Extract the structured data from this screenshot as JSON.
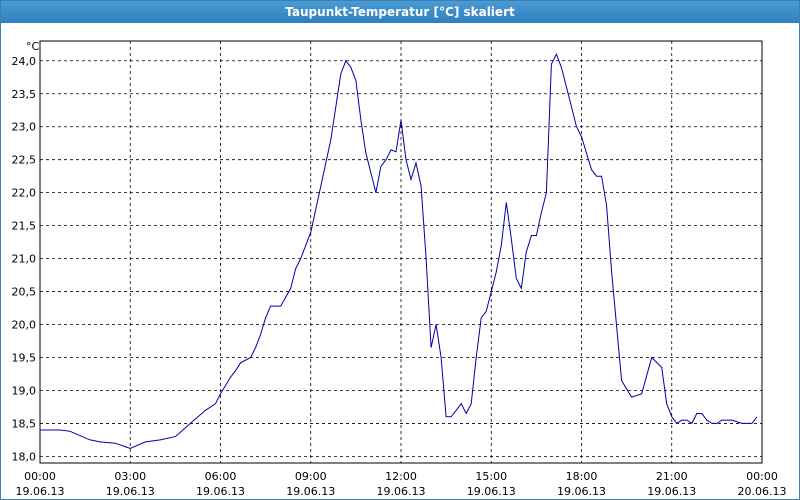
{
  "window": {
    "title": "Taupunkt-Temperatur [°C] skaliert"
  },
  "chart_data": {
    "type": "line",
    "title": "Taupunkt-Temperatur [°C] skaliert",
    "ylabel": "°C",
    "xlabel": "",
    "ylim": [
      17.9,
      24.3
    ],
    "xlim": [
      0,
      24
    ],
    "grid": true,
    "grid_style": "dashed",
    "line_color": "#0000aa",
    "y_ticks": [
      "18,0",
      "18,5",
      "19,0",
      "19,5",
      "20,0",
      "20,5",
      "21,0",
      "21,5",
      "22,0",
      "22,5",
      "23,0",
      "23,5",
      "24,0"
    ],
    "x_ticks": [
      {
        "time": "00:00",
        "date": "19.06.13"
      },
      {
        "time": "03:00",
        "date": "19.06.13"
      },
      {
        "time": "06:00",
        "date": "19.06.13"
      },
      {
        "time": "09:00",
        "date": "19.06.13"
      },
      {
        "time": "12:00",
        "date": "19.06.13"
      },
      {
        "time": "15:00",
        "date": "19.06.13"
      },
      {
        "time": "18:00",
        "date": "19.06.13"
      },
      {
        "time": "21:00",
        "date": "19.06.13"
      },
      {
        "time": "00:00",
        "date": "20.06.13"
      }
    ],
    "series": [
      {
        "x": [
          "19.06.13 00:00",
          "19.06.13 00:40",
          "19.06.13 01:00",
          "19.06.13 01:40",
          "19.06.13 02:00",
          "19.06.13 02:30",
          "19.06.13 03:00",
          "19.06.13 03:30",
          "19.06.13 04:00",
          "19.06.13 04:30",
          "19.06.13 05:00",
          "19.06.13 05:30",
          "19.06.13 05:50",
          "19.06.13 06:00",
          "19.06.13 06:20",
          "19.06.13 06:30",
          "19.06.13 06:40",
          "19.06.13 07:00",
          "19.06.13 07:10",
          "19.06.13 07:20",
          "19.06.13 07:30",
          "19.06.13 07:40",
          "19.06.13 08:00",
          "19.06.13 08:20",
          "19.06.13 08:30",
          "19.06.13 08:40",
          "19.06.13 09:00",
          "19.06.13 09:20",
          "19.06.13 09:40",
          "19.06.13 10:00",
          "19.06.13 10:10",
          "19.06.13 10:20",
          "19.06.13 10:30",
          "19.06.13 10:40",
          "19.06.13 10:50",
          "19.06.13 11:00",
          "19.06.13 11:10",
          "19.06.13 11:20",
          "19.06.13 11:30",
          "19.06.13 11:40",
          "19.06.13 11:50",
          "19.06.13 12:00",
          "19.06.13 12:10",
          "19.06.13 12:20",
          "19.06.13 12:30",
          "19.06.13 12:40",
          "19.06.13 12:50",
          "19.06.13 13:00",
          "19.06.13 13:10",
          "19.06.13 13:20",
          "19.06.13 13:30",
          "19.06.13 13:40",
          "19.06.13 13:50",
          "19.06.13 14:00",
          "19.06.13 14:10",
          "19.06.13 14:20",
          "19.06.13 14:30",
          "19.06.13 14:40",
          "19.06.13 14:50",
          "19.06.13 15:00",
          "19.06.13 15:10",
          "19.06.13 15:20",
          "19.06.13 15:30",
          "19.06.13 15:40",
          "19.06.13 15:50",
          "19.06.13 16:00",
          "19.06.13 16:10",
          "19.06.13 16:20",
          "19.06.13 16:30",
          "19.06.13 16:40",
          "19.06.13 16:50",
          "19.06.13 17:00",
          "19.06.13 17:10",
          "19.06.13 17:20",
          "19.06.13 17:30",
          "19.06.13 17:40",
          "19.06.13 17:50",
          "19.06.13 18:00",
          "19.06.13 18:10",
          "19.06.13 18:20",
          "19.06.13 18:30",
          "19.06.13 18:40",
          "19.06.13 18:50",
          "19.06.13 19:00",
          "19.06.13 19:20",
          "19.06.13 19:40",
          "19.06.13 20:00",
          "19.06.13 20:20",
          "19.06.13 20:40",
          "19.06.13 20:50",
          "19.06.13 21:00",
          "19.06.13 21:10",
          "19.06.13 21:20",
          "19.06.13 21:30",
          "19.06.13 21:40",
          "19.06.13 21:50",
          "19.06.13 22:00",
          "19.06.13 22:10",
          "19.06.13 22:20",
          "19.06.13 22:30",
          "19.06.13 22:40",
          "19.06.13 23:00",
          "19.06.13 23:20",
          "19.06.13 23:40",
          "19.06.13 23:50"
        ],
        "y": [
          18.4,
          18.4,
          18.38,
          18.25,
          18.22,
          18.2,
          18.12,
          18.22,
          18.25,
          18.3,
          18.5,
          18.7,
          18.8,
          18.95,
          19.2,
          19.3,
          19.42,
          19.5,
          19.65,
          19.85,
          20.1,
          20.28,
          20.28,
          20.55,
          20.85,
          21.0,
          21.4,
          22.1,
          22.8,
          23.8,
          24.0,
          23.9,
          23.7,
          23.1,
          22.6,
          22.3,
          22.0,
          22.4,
          22.5,
          22.65,
          22.62,
          23.1,
          22.5,
          22.2,
          22.45,
          22.1,
          21.0,
          19.65,
          20.0,
          19.5,
          18.6,
          18.6,
          18.7,
          18.8,
          18.65,
          18.8,
          19.5,
          20.1,
          20.2,
          20.5,
          20.8,
          21.2,
          21.85,
          21.3,
          20.7,
          20.55,
          21.1,
          21.35,
          21.35,
          21.7,
          22.0,
          23.95,
          24.1,
          23.9,
          23.6,
          23.3,
          23.0,
          22.85,
          22.6,
          22.35,
          22.25,
          22.25,
          21.8,
          20.8,
          19.15,
          18.9,
          18.95,
          19.5,
          19.35,
          18.8,
          18.6,
          18.5,
          18.55,
          18.55,
          18.5,
          18.65,
          18.65,
          18.55,
          18.5,
          18.5,
          18.55,
          18.55,
          18.5,
          18.5,
          18.6
        ]
      }
    ]
  }
}
